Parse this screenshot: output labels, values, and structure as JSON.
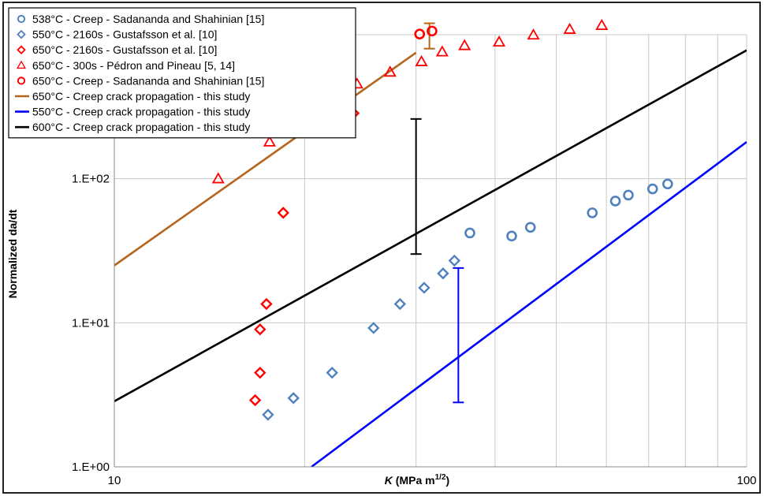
{
  "chart_data": {
    "type": "scatter",
    "x_scale": "log",
    "y_scale": "log",
    "xlim": [
      10,
      100
    ],
    "ylim": [
      1,
      1000
    ],
    "xlabel_italic": "K",
    "xlabel_rest": " (MPa m",
    "xlabel_sup": "1/2",
    "xlabel_close": ")",
    "ylabel": "Normalized da/dt",
    "x_ticks": [
      {
        "value": 10,
        "label": "10"
      },
      {
        "value": 100,
        "label": "100"
      }
    ],
    "y_ticks": [
      {
        "value": 1,
        "label": "1.E+00"
      },
      {
        "value": 10,
        "label": "1.E+01"
      },
      {
        "value": 100,
        "label": "1.E+02"
      }
    ],
    "grid": true,
    "legend_position": "top-left",
    "legend": [
      {
        "label": "538°C - Creep - Sadananda and Shahinian [15]",
        "color": "#4f81bd",
        "symbol": "circle"
      },
      {
        "label": "550°C - 2160s - Gustafsson et al. [10]",
        "color": "#4f81bd",
        "symbol": "diamond"
      },
      {
        "label": "650°C - 2160s - Gustafsson et al. [10]",
        "color": "#ff0000",
        "symbol": "diamond"
      },
      {
        "label": "650°C - 300s - Pédron and Pineau [5, 14]",
        "color": "#ff0000",
        "symbol": "triangle"
      },
      {
        "label": "650°C - Creep - Sadananda and Shahinian [15]",
        "color": "#ff0000",
        "symbol": "circle"
      },
      {
        "label": "650°C - Creep crack propagation - this study",
        "color": "#b5651d",
        "symbol": "line"
      },
      {
        "label": "550°C - Creep crack propagation - this study",
        "color": "#0000ff",
        "symbol": "line"
      },
      {
        "label": "600°C - Creep crack propagation - this study",
        "color": "#000000",
        "symbol": "line"
      }
    ],
    "series": [
      {
        "name": "538°C - Creep - Sadananda and Shahinian [15]",
        "kind": "scatter",
        "symbol": "circle",
        "color": "#4f81bd",
        "points": [
          [
            36.5,
            42
          ],
          [
            42.5,
            40
          ],
          [
            45.5,
            46
          ],
          [
            57,
            58
          ],
          [
            62,
            70
          ],
          [
            65,
            77
          ],
          [
            71,
            85
          ],
          [
            75,
            92
          ]
        ]
      },
      {
        "name": "550°C - 2160s - Gustafsson et al. [10]",
        "kind": "scatter",
        "symbol": "diamond",
        "color": "#4f81bd",
        "points": [
          [
            17.5,
            2.3
          ],
          [
            19.2,
            3.0
          ],
          [
            22.1,
            4.5
          ],
          [
            25.7,
            9.2
          ],
          [
            28.3,
            13.5
          ],
          [
            30.9,
            17.5
          ],
          [
            33.1,
            22
          ],
          [
            34.5,
            27
          ]
        ]
      },
      {
        "name": "650°C - 2160s - Gustafsson et al. [10]",
        "kind": "scatter",
        "symbol": "diamond",
        "color": "#ff0000",
        "points": [
          [
            16.7,
            2.9
          ],
          [
            17.0,
            4.5
          ],
          [
            17.0,
            9.0
          ],
          [
            17.4,
            13.5
          ],
          [
            18.5,
            58
          ],
          [
            23.9,
            285
          ]
        ]
      },
      {
        "name": "650°C - 300s - Pédron and Pineau [5, 14]",
        "kind": "scatter",
        "symbol": "triangle",
        "color": "#ff0000",
        "points": [
          [
            14.6,
            100
          ],
          [
            17.6,
            180
          ],
          [
            19.8,
            245
          ],
          [
            21.3,
            345
          ],
          [
            24.2,
            455
          ],
          [
            27.3,
            550
          ],
          [
            30.6,
            650
          ],
          [
            33.0,
            760
          ],
          [
            35.8,
            840
          ],
          [
            40.6,
            890
          ],
          [
            46.0,
            995
          ],
          [
            52.5,
            1090
          ],
          [
            59.0,
            1160
          ]
        ]
      },
      {
        "name": "650°C - Creep - Sadananda and Shahinian [15]",
        "kind": "scatter",
        "symbol": "circle",
        "color": "#ff0000",
        "points": [
          [
            30.4,
            1010
          ],
          [
            31.8,
            1060
          ]
        ]
      },
      {
        "name": "650°C - Creep crack propagation - this study",
        "kind": "line",
        "color": "#b5651d",
        "points": [
          [
            10,
            25
          ],
          [
            30,
            750
          ]
        ]
      },
      {
        "name": "550°C - Creep crack propagation - this study",
        "kind": "line",
        "color": "#0000ff",
        "points": [
          [
            20.5,
            1.0
          ],
          [
            100,
            180
          ]
        ]
      },
      {
        "name": "600°C - Creep crack propagation - this study",
        "kind": "line",
        "color": "#000000",
        "points": [
          [
            10,
            2.85
          ],
          [
            100,
            780
          ]
        ]
      }
    ],
    "error_bars": [
      {
        "color": "#b5651d",
        "x": 31.5,
        "low": 800,
        "high": 1200
      },
      {
        "color": "#000000",
        "x": 30.0,
        "low": 30,
        "high": 260
      },
      {
        "color": "#0000ff",
        "x": 35.0,
        "low": 2.8,
        "high": 24
      }
    ]
  }
}
